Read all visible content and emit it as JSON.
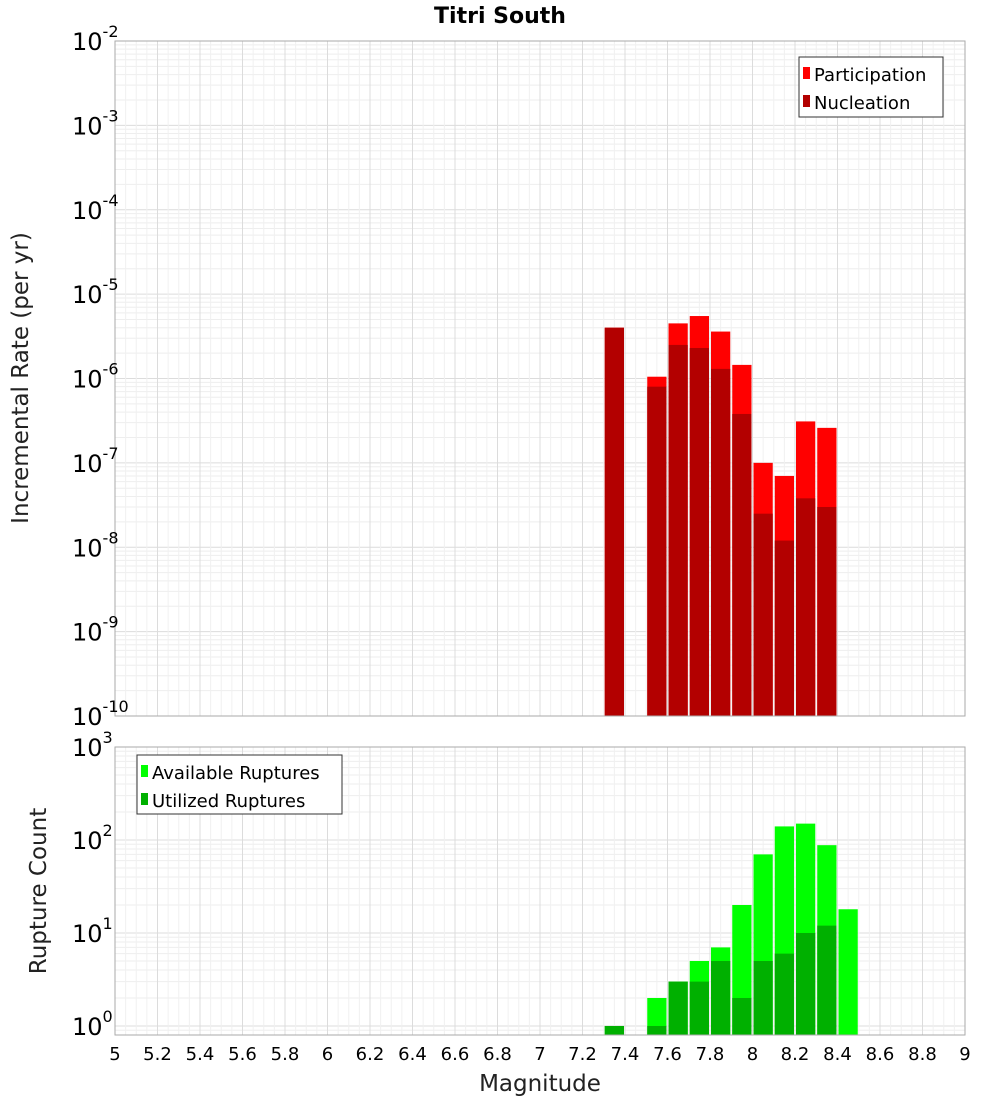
{
  "chart_data": [
    {
      "type": "bar",
      "title": "Titri South",
      "xlabel": "Magnitude",
      "ylabel": "Incremental Rate (per yr)",
      "y_scale": "log",
      "ylim": [
        1e-10,
        0.01
      ],
      "xlim": [
        5,
        9
      ],
      "grid": true,
      "legend_position": "top-right",
      "bar_width": 0.1,
      "y_ticks": [
        {
          "base": "10",
          "exp": "-2",
          "value": 0.01
        },
        {
          "base": "10",
          "exp": "-3",
          "value": 0.001
        },
        {
          "base": "10",
          "exp": "-4",
          "value": 0.0001
        },
        {
          "base": "10",
          "exp": "-5",
          "value": 1e-05
        },
        {
          "base": "10",
          "exp": "-6",
          "value": 1e-06
        },
        {
          "base": "10",
          "exp": "-7",
          "value": 1e-07
        },
        {
          "base": "10",
          "exp": "-8",
          "value": 1e-08
        },
        {
          "base": "10",
          "exp": "-9",
          "value": 1e-09
        },
        {
          "base": "10",
          "exp": "-10",
          "value": 1e-10
        }
      ],
      "series": [
        {
          "name": "Participation",
          "color": "#ff0000",
          "x": [
            7.35,
            7.55,
            7.65,
            7.75,
            7.85,
            7.95,
            8.05,
            8.15,
            8.25,
            8.35
          ],
          "values": [
            4e-06,
            1.05e-06,
            4.5e-06,
            5.5e-06,
            3.6e-06,
            1.45e-06,
            1e-07,
            7e-08,
            3.1e-07,
            2.6e-07
          ]
        },
        {
          "name": "Nucleation",
          "color": "#b30000",
          "x": [
            7.35,
            7.55,
            7.65,
            7.75,
            7.85,
            7.95,
            8.05,
            8.15,
            8.25,
            8.35
          ],
          "values": [
            4e-06,
            8e-07,
            2.5e-06,
            2.3e-06,
            1.3e-06,
            3.8e-07,
            2.5e-08,
            1.2e-08,
            3.8e-08,
            3e-08
          ]
        }
      ]
    },
    {
      "type": "bar",
      "xlabel": "Magnitude",
      "ylabel": "Rupture Count",
      "y_scale": "log",
      "ylim": [
        0.8,
        1000
      ],
      "xlim": [
        5,
        9
      ],
      "grid": true,
      "legend_position": "top-left",
      "bar_width": 0.1,
      "y_ticks": [
        {
          "base": "10",
          "exp": "3",
          "value": 1000
        },
        {
          "base": "10",
          "exp": "2",
          "value": 100
        },
        {
          "base": "10",
          "exp": "1",
          "value": 10
        },
        {
          "base": "10",
          "exp": "0",
          "value": 1
        }
      ],
      "x_ticks": [
        "5",
        "5.2",
        "5.4",
        "5.6",
        "5.8",
        "6",
        "6.2",
        "6.4",
        "6.6",
        "6.8",
        "7",
        "7.2",
        "7.4",
        "7.6",
        "7.8",
        "8",
        "8.2",
        "8.4",
        "8.6",
        "8.8",
        "9"
      ],
      "series": [
        {
          "name": "Available Ruptures",
          "color": "#00ff00",
          "x": [
            7.35,
            7.55,
            7.65,
            7.75,
            7.85,
            7.95,
            8.05,
            8.15,
            8.25,
            8.35,
            8.45
          ],
          "values": [
            1,
            2,
            3,
            5,
            7,
            20,
            70,
            140,
            150,
            88,
            18
          ]
        },
        {
          "name": "Utilized Ruptures",
          "color": "#00b000",
          "x": [
            7.35,
            7.55,
            7.65,
            7.75,
            7.85,
            7.95,
            8.05,
            8.15,
            8.25,
            8.35,
            8.45
          ],
          "values": [
            1,
            1,
            3,
            3,
            5,
            2,
            5,
            6,
            10,
            12,
            0
          ]
        }
      ]
    }
  ]
}
